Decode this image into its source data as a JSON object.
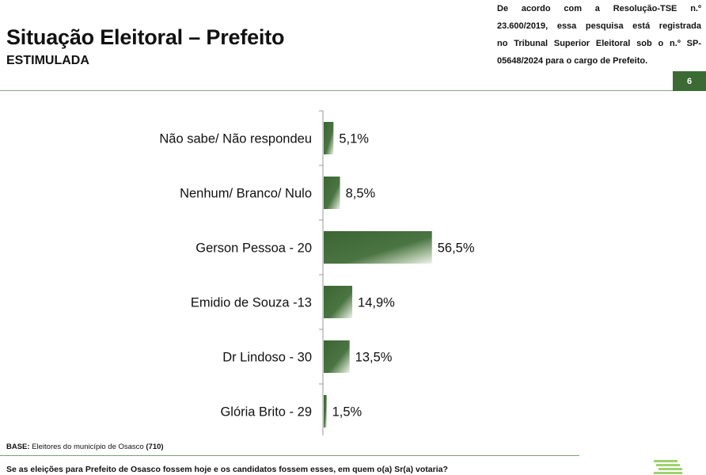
{
  "header": {
    "title": "Situação Eleitoral – Prefeito",
    "subtitle": "ESTIMULADA",
    "note_lines": [
      "De acordo com a Resolução-TSE n.º",
      "23.600/2019, essa pesquisa está registrada",
      "no Tribunal Superior Eleitoral sob o n.º SP-",
      "05648/2024 para o cargo de Prefeito."
    ],
    "page_number": "6"
  },
  "chart_data": {
    "type": "bar",
    "orientation": "horizontal",
    "categories": [
      "Não sabe/ Não respondeu",
      "Nenhum/ Branco/ Nulo",
      "Gerson Pessoa - 20",
      "Emidio de Souza -13",
      "Dr Lindoso - 30",
      "Glória Brito - 29"
    ],
    "values": [
      5.1,
      8.5,
      56.5,
      14.9,
      13.5,
      1.5
    ],
    "value_labels": [
      "5,1%",
      "8,5%",
      "56,5%",
      "14,9%",
      "13,5%",
      "1,5%"
    ],
    "xlim": [
      0,
      100
    ],
    "grid": false,
    "legend": false,
    "colors": {
      "bar_dark": "#3c6534",
      "bar_light": "#eef3ea",
      "axis": "#9a9a9a"
    }
  },
  "footer": {
    "base_label": "BASE:",
    "base_text": "Eleitores do município de Osasco",
    "base_count": "(710)",
    "question": "Se as eleições para Prefeito de Osasco fossem hoje e os candidatos fossem esses, em quem o(a) Sr(a) votaria?"
  },
  "colors": {
    "brand_green": "#3b6b32",
    "logo_green": "#9fd26e"
  }
}
